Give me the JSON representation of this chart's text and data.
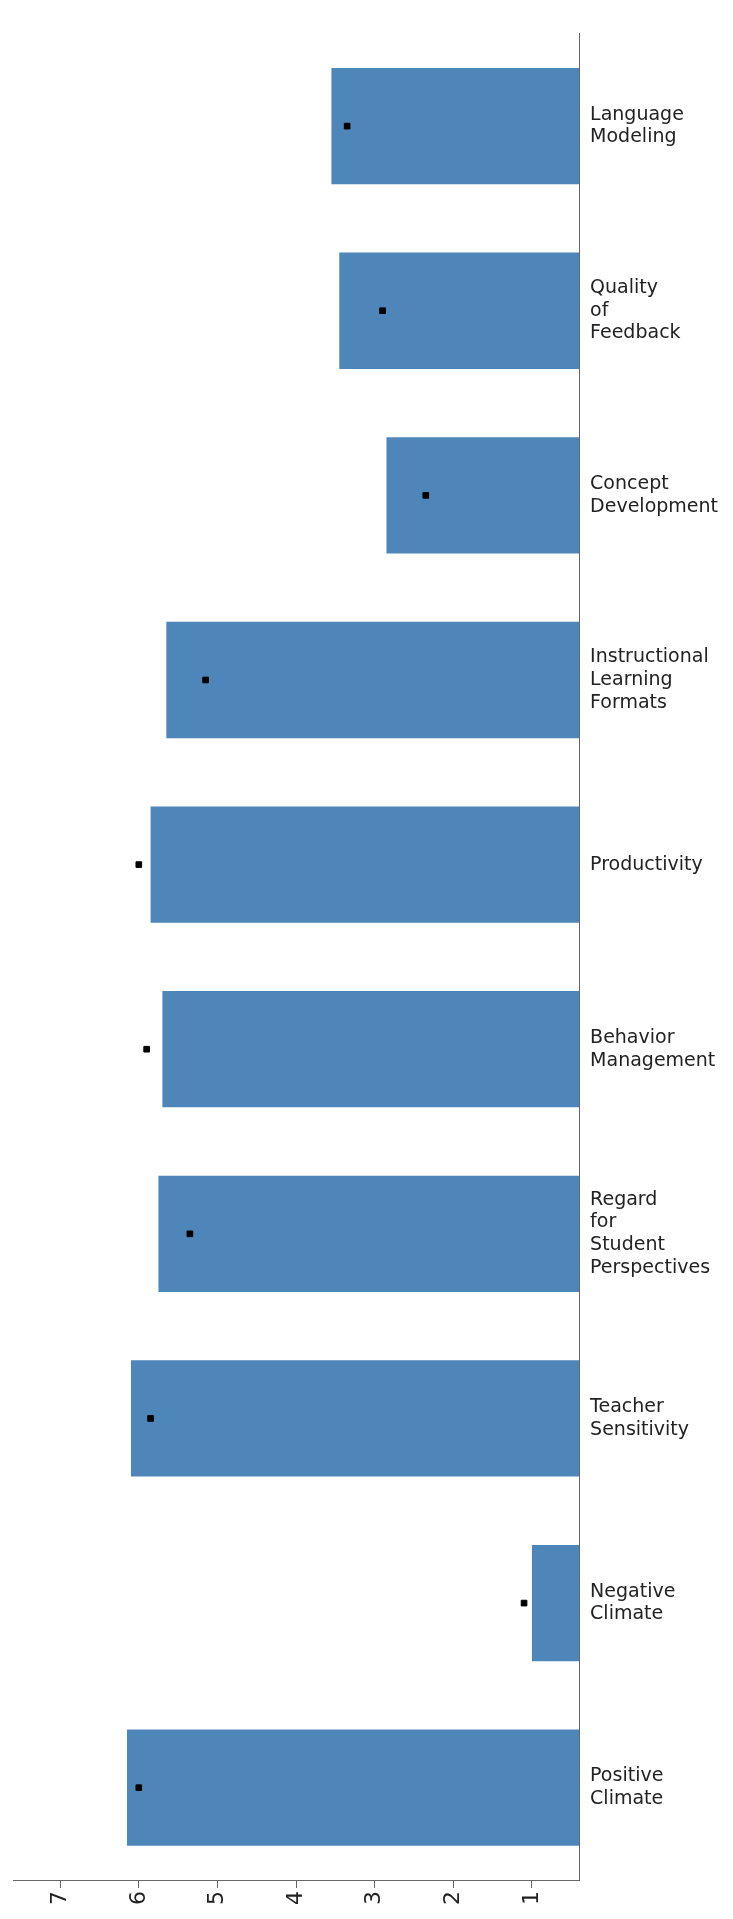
{
  "chart_data": {
    "type": "bar",
    "orientation": "horizontal",
    "categories": [
      "Language Modeling",
      "Quality of Feedback",
      "Concept Development",
      "Instructional Learning Formats",
      "Productivity",
      "Behavior Management",
      "Regard for Student Perspectives",
      "Teacher Sensitivity",
      "Negative Climate",
      "Positive Climate"
    ],
    "series": [
      {
        "color": "#4f86b9",
        "values": [
          3.55,
          3.45,
          2.85,
          5.65,
          5.85,
          5.7,
          5.75,
          6.1,
          1.0,
          6.15
        ]
      },
      {
        "type": "scatter",
        "marker": "square",
        "color": "#000000",
        "values": [
          3.35,
          2.9,
          2.35,
          5.15,
          6.0,
          5.9,
          5.35,
          5.85,
          1.1,
          6.0
        ]
      }
    ],
    "xlim": [
      7.6,
      0.4
    ],
    "xticks": [
      7,
      6,
      5,
      4,
      3,
      2,
      1
    ],
    "grid": false,
    "legend": false
  }
}
